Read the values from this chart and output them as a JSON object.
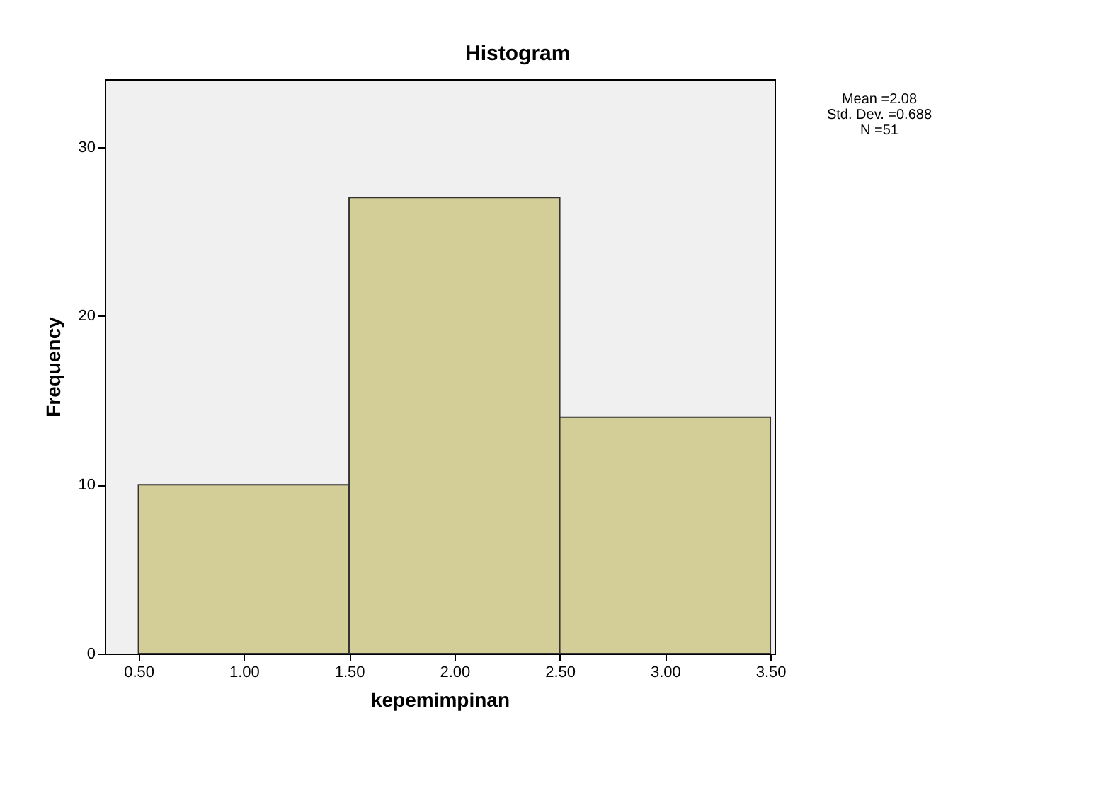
{
  "chart_data": {
    "type": "histogram",
    "title": "Histogram",
    "xlabel": "kepemimpinan",
    "ylabel": "Frequency",
    "bins": [
      0.5,
      1.5,
      2.5,
      3.5
    ],
    "values": [
      10,
      27,
      14
    ],
    "color": "#d3ce97",
    "xlim": [
      0.34,
      3.52
    ],
    "xticks": [
      {
        "value": 0.5,
        "label": "0.50"
      },
      {
        "value": 1,
        "label": "1.00"
      },
      {
        "value": 1.5,
        "label": "1.50"
      },
      {
        "value": 2,
        "label": "2.00"
      },
      {
        "value": 2.5,
        "label": "2.50"
      },
      {
        "value": 3,
        "label": "3.00"
      },
      {
        "value": 3.5,
        "label": "3.50"
      }
    ],
    "ylim": [
      0,
      34
    ],
    "yticks": [
      0,
      10,
      20,
      30
    ],
    "grid": false,
    "annotations": [
      "Mean =2.08",
      "Std. Dev. =0.688",
      "N =51"
    ]
  }
}
